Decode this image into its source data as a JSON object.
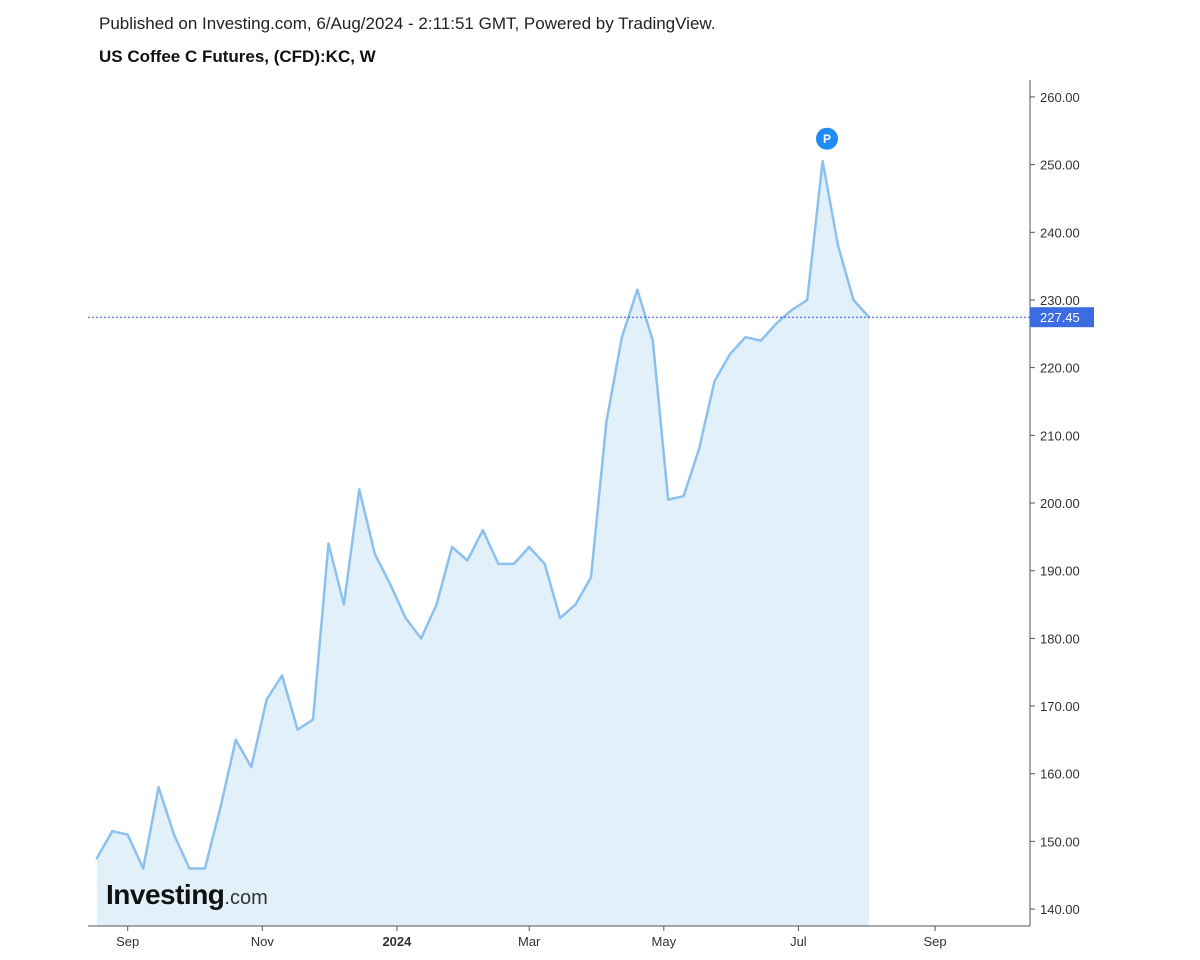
{
  "header": {
    "published": "Published on Investing.com, 6/Aug/2024 - 2:11:51 GMT, Powered by TradingView.",
    "title": "US Coffee C Futures, (CFD):KC, W"
  },
  "logo": {
    "text_bold": "Investing",
    "text_light": ".com"
  },
  "marker": {
    "label": "P"
  },
  "colors": {
    "line": "#8cc1ee",
    "fill": "#e2f0fa",
    "last_price_line": "#2f54d9",
    "price_tag_bg": "#3d6be0",
    "marker_bg": "#1e8cf0",
    "axis": "#555555"
  },
  "chart_data": {
    "type": "area",
    "title": "US Coffee C Futures, (CFD):KC, W",
    "xlabel": "",
    "ylabel": "",
    "ylim": [
      137.5,
      262.5
    ],
    "xlim": [
      "2023-08-14",
      "2024-10-14"
    ],
    "y_axis_position": "right",
    "grid": false,
    "y_ticks": [
      140,
      150,
      160,
      170,
      180,
      190,
      200,
      210,
      220,
      230,
      240,
      250,
      260
    ],
    "y_tick_labels": [
      "140.00",
      "150.00",
      "160.00",
      "170.00",
      "180.00",
      "190.00",
      "200.00",
      "210.00",
      "220.00",
      "230.00",
      "240.00",
      "250.00",
      "260.00"
    ],
    "x_ticks": [
      "2023-09-01",
      "2023-11-01",
      "2024-01-01",
      "2024-03-01",
      "2024-05-01",
      "2024-07-01",
      "2024-09-01"
    ],
    "x_tick_labels": [
      "Sep",
      "Nov",
      "2024",
      "Mar",
      "May",
      "Jul",
      "Sep"
    ],
    "last_price": 227.45,
    "last_price_label": "227.45",
    "marker_point": {
      "x": "2024-07-14",
      "y": 252.5
    },
    "series": [
      {
        "x": [
          "2023-08-18",
          "2023-08-25",
          "2023-09-01",
          "2023-09-08",
          "2023-09-15",
          "2023-09-22",
          "2023-09-29",
          "2023-10-06",
          "2023-10-13",
          "2023-10-20",
          "2023-10-27",
          "2023-11-03",
          "2023-11-10",
          "2023-11-17",
          "2023-11-24",
          "2023-12-01",
          "2023-12-08",
          "2023-12-15",
          "2023-12-22",
          "2023-12-29",
          "2024-01-05",
          "2024-01-12",
          "2024-01-19",
          "2024-01-26",
          "2024-02-02",
          "2024-02-09",
          "2024-02-16",
          "2024-02-23",
          "2024-03-01",
          "2024-03-08",
          "2024-03-15",
          "2024-03-22",
          "2024-03-29",
          "2024-04-05",
          "2024-04-12",
          "2024-04-19",
          "2024-04-26",
          "2024-05-03",
          "2024-05-10",
          "2024-05-17",
          "2024-05-24",
          "2024-05-31",
          "2024-06-07",
          "2024-06-14",
          "2024-06-21",
          "2024-06-28",
          "2024-07-05",
          "2024-07-12",
          "2024-07-19",
          "2024-07-26",
          "2024-08-02"
        ],
        "values": [
          147.5,
          151.5,
          151.0,
          146.0,
          158.0,
          151.0,
          146.0,
          146.0,
          155.0,
          165.0,
          161.0,
          171.0,
          174.5,
          166.5,
          168.0,
          194.0,
          185.0,
          202.0,
          192.5,
          188.0,
          183.0,
          180.0,
          185.0,
          193.5,
          191.5,
          196.0,
          191.0,
          191.0,
          193.5,
          191.0,
          183.0,
          185.0,
          189.0,
          212.0,
          224.5,
          231.5,
          224.0,
          200.5,
          201.0,
          208.0,
          218.0,
          222.0,
          224.5,
          224.0,
          226.5,
          228.5,
          230.0,
          250.5,
          238.0,
          230.0,
          227.45
        ]
      }
    ]
  }
}
